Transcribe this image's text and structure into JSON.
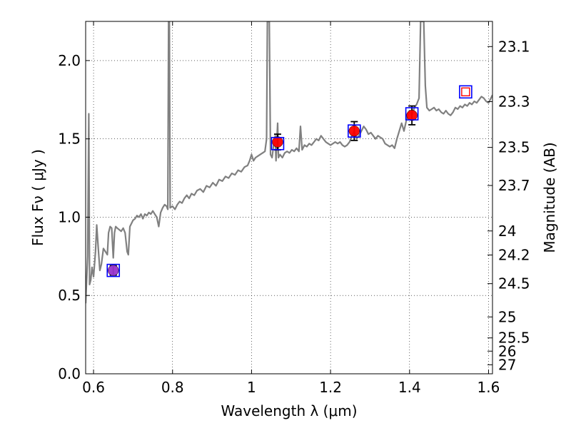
{
  "chart_data": {
    "type": "line",
    "xlabel": "Wavelength  λ (μm)",
    "ylabel": "Flux  Fν  ( μJy )",
    "ylabel_right": "Magnitude (AB)",
    "xlim": [
      0.58,
      1.61
    ],
    "ylim": [
      0.0,
      2.25
    ],
    "grid": true,
    "x_ticks": [
      {
        "value": 0.6,
        "label": "0.6"
      },
      {
        "value": 0.8,
        "label": "0.8"
      },
      {
        "value": 1.0,
        "label": "1"
      },
      {
        "value": 1.2,
        "label": "1.2"
      },
      {
        "value": 1.4,
        "label": "1.4"
      },
      {
        "value": 1.6,
        "label": "1.6"
      }
    ],
    "y_ticks": [
      {
        "value": 0.0,
        "label": "0.0"
      },
      {
        "value": 0.5,
        "label": "0.5"
      },
      {
        "value": 1.0,
        "label": "1.0"
      },
      {
        "value": 1.5,
        "label": "1.5"
      },
      {
        "value": 2.0,
        "label": "2.0"
      }
    ],
    "right_ticks": [
      {
        "mag": 23.1,
        "label": "23.1"
      },
      {
        "mag": 23.3,
        "label": "23.3"
      },
      {
        "mag": 23.5,
        "label": "23.5"
      },
      {
        "mag": 23.7,
        "label": "23.7"
      },
      {
        "mag": 24.0,
        "label": "24"
      },
      {
        "mag": 24.2,
        "label": "24.2"
      },
      {
        "mag": 24.5,
        "label": "24.5"
      },
      {
        "mag": 25.0,
        "label": "25"
      },
      {
        "mag": 25.5,
        "label": "25.5"
      },
      {
        "mag": 26.0,
        "label": "26"
      },
      {
        "mag": 27.0,
        "label": "27"
      }
    ],
    "model_spectrum": {
      "color": "#808080",
      "points": [
        [
          0.58,
          0.45
        ],
        [
          0.585,
          0.75
        ],
        [
          0.588,
          1.66
        ],
        [
          0.59,
          0.57
        ],
        [
          0.593,
          0.6
        ],
        [
          0.596,
          0.68
        ],
        [
          0.6,
          0.62
        ],
        [
          0.605,
          0.78
        ],
        [
          0.608,
          0.95
        ],
        [
          0.612,
          0.8
        ],
        [
          0.616,
          0.66
        ],
        [
          0.62,
          0.7
        ],
        [
          0.625,
          0.8
        ],
        [
          0.63,
          0.78
        ],
        [
          0.635,
          0.76
        ],
        [
          0.638,
          0.9
        ],
        [
          0.642,
          0.94
        ],
        [
          0.646,
          0.93
        ],
        [
          0.65,
          0.74
        ],
        [
          0.653,
          0.9
        ],
        [
          0.656,
          0.94
        ],
        [
          0.66,
          0.93
        ],
        [
          0.665,
          0.92
        ],
        [
          0.67,
          0.91
        ],
        [
          0.675,
          0.93
        ],
        [
          0.68,
          0.9
        ],
        [
          0.685,
          0.78
        ],
        [
          0.688,
          0.76
        ],
        [
          0.692,
          0.94
        ],
        [
          0.696,
          0.96
        ],
        [
          0.7,
          0.98
        ],
        [
          0.705,
          0.99
        ],
        [
          0.71,
          1.01
        ],
        [
          0.715,
          1.0
        ],
        [
          0.72,
          1.02
        ],
        [
          0.725,
          0.99
        ],
        [
          0.73,
          1.02
        ],
        [
          0.735,
          1.01
        ],
        [
          0.74,
          1.03
        ],
        [
          0.745,
          1.02
        ],
        [
          0.75,
          1.04
        ],
        [
          0.755,
          1.02
        ],
        [
          0.76,
          1.0
        ],
        [
          0.765,
          0.94
        ],
        [
          0.77,
          1.03
        ],
        [
          0.775,
          1.06
        ],
        [
          0.78,
          1.08
        ],
        [
          0.785,
          1.07
        ],
        [
          0.788,
          1.05
        ],
        [
          0.79,
          2.25
        ],
        [
          0.792,
          2.25
        ],
        [
          0.794,
          1.06
        ],
        [
          0.8,
          1.07
        ],
        [
          0.806,
          1.05
        ],
        [
          0.812,
          1.08
        ],
        [
          0.818,
          1.1
        ],
        [
          0.824,
          1.09
        ],
        [
          0.83,
          1.12
        ],
        [
          0.836,
          1.14
        ],
        [
          0.842,
          1.12
        ],
        [
          0.848,
          1.15
        ],
        [
          0.855,
          1.14
        ],
        [
          0.862,
          1.17
        ],
        [
          0.87,
          1.18
        ],
        [
          0.878,
          1.16
        ],
        [
          0.886,
          1.2
        ],
        [
          0.894,
          1.19
        ],
        [
          0.902,
          1.22
        ],
        [
          0.91,
          1.2
        ],
        [
          0.918,
          1.24
        ],
        [
          0.926,
          1.23
        ],
        [
          0.934,
          1.26
        ],
        [
          0.942,
          1.25
        ],
        [
          0.95,
          1.28
        ],
        [
          0.958,
          1.27
        ],
        [
          0.966,
          1.3
        ],
        [
          0.974,
          1.29
        ],
        [
          0.982,
          1.32
        ],
        [
          0.99,
          1.33
        ],
        [
          0.995,
          1.36
        ],
        [
          1.0,
          1.4
        ],
        [
          1.005,
          1.36
        ],
        [
          1.01,
          1.38
        ],
        [
          1.016,
          1.39
        ],
        [
          1.022,
          1.4
        ],
        [
          1.028,
          1.41
        ],
        [
          1.034,
          1.42
        ],
        [
          1.038,
          1.5
        ],
        [
          1.04,
          2.25
        ],
        [
          1.045,
          2.25
        ],
        [
          1.048,
          1.4
        ],
        [
          1.052,
          1.38
        ],
        [
          1.056,
          1.46
        ],
        [
          1.06,
          1.52
        ],
        [
          1.062,
          1.36
        ],
        [
          1.066,
          1.6
        ],
        [
          1.068,
          1.38
        ],
        [
          1.072,
          1.4
        ],
        [
          1.078,
          1.38
        ],
        [
          1.084,
          1.41
        ],
        [
          1.09,
          1.42
        ],
        [
          1.096,
          1.41
        ],
        [
          1.102,
          1.43
        ],
        [
          1.108,
          1.42
        ],
        [
          1.114,
          1.44
        ],
        [
          1.12,
          1.42
        ],
        [
          1.124,
          1.58
        ],
        [
          1.128,
          1.43
        ],
        [
          1.134,
          1.46
        ],
        [
          1.14,
          1.45
        ],
        [
          1.146,
          1.47
        ],
        [
          1.152,
          1.46
        ],
        [
          1.158,
          1.48
        ],
        [
          1.164,
          1.5
        ],
        [
          1.17,
          1.49
        ],
        [
          1.176,
          1.52
        ],
        [
          1.182,
          1.5
        ],
        [
          1.188,
          1.48
        ],
        [
          1.194,
          1.47
        ],
        [
          1.2,
          1.46
        ],
        [
          1.206,
          1.47
        ],
        [
          1.212,
          1.48
        ],
        [
          1.218,
          1.47
        ],
        [
          1.224,
          1.48
        ],
        [
          1.23,
          1.46
        ],
        [
          1.236,
          1.45
        ],
        [
          1.242,
          1.46
        ],
        [
          1.248,
          1.48
        ],
        [
          1.254,
          1.52
        ],
        [
          1.26,
          1.55
        ],
        [
          1.266,
          1.5
        ],
        [
          1.272,
          1.52
        ],
        [
          1.278,
          1.55
        ],
        [
          1.284,
          1.58
        ],
        [
          1.29,
          1.56
        ],
        [
          1.296,
          1.53
        ],
        [
          1.302,
          1.54
        ],
        [
          1.308,
          1.52
        ],
        [
          1.314,
          1.5
        ],
        [
          1.32,
          1.52
        ],
        [
          1.326,
          1.51
        ],
        [
          1.332,
          1.5
        ],
        [
          1.338,
          1.47
        ],
        [
          1.344,
          1.46
        ],
        [
          1.35,
          1.45
        ],
        [
          1.356,
          1.46
        ],
        [
          1.362,
          1.44
        ],
        [
          1.368,
          1.5
        ],
        [
          1.374,
          1.55
        ],
        [
          1.38,
          1.6
        ],
        [
          1.386,
          1.55
        ],
        [
          1.392,
          1.62
        ],
        [
          1.396,
          1.65
        ],
        [
          1.4,
          1.68
        ],
        [
          1.404,
          1.65
        ],
        [
          1.408,
          1.66
        ],
        [
          1.412,
          1.7
        ],
        [
          1.418,
          1.72
        ],
        [
          1.424,
          1.76
        ],
        [
          1.428,
          2.25
        ],
        [
          1.436,
          2.25
        ],
        [
          1.44,
          1.84
        ],
        [
          1.444,
          1.7
        ],
        [
          1.45,
          1.68
        ],
        [
          1.456,
          1.69
        ],
        [
          1.462,
          1.7
        ],
        [
          1.468,
          1.68
        ],
        [
          1.474,
          1.69
        ],
        [
          1.48,
          1.67
        ],
        [
          1.486,
          1.66
        ],
        [
          1.492,
          1.68
        ],
        [
          1.498,
          1.66
        ],
        [
          1.504,
          1.65
        ],
        [
          1.51,
          1.67
        ],
        [
          1.516,
          1.7
        ],
        [
          1.522,
          1.69
        ],
        [
          1.528,
          1.71
        ],
        [
          1.534,
          1.7
        ],
        [
          1.54,
          1.72
        ],
        [
          1.546,
          1.71
        ],
        [
          1.552,
          1.73
        ],
        [
          1.558,
          1.72
        ],
        [
          1.564,
          1.74
        ],
        [
          1.57,
          1.73
        ],
        [
          1.576,
          1.75
        ],
        [
          1.582,
          1.77
        ],
        [
          1.588,
          1.76
        ],
        [
          1.594,
          1.74
        ],
        [
          1.6,
          1.73
        ],
        [
          1.606,
          1.76
        ],
        [
          1.61,
          1.78
        ]
      ]
    },
    "model_photometry": {
      "marker": "square",
      "edge_colors": [
        "#0000ff",
        "#0000ff",
        "#0000ff",
        "#0000ff",
        "#0000ff"
      ],
      "extra_marker_color": "#ff0000",
      "points": [
        [
          0.65,
          0.66
        ],
        [
          1.066,
          1.47
        ],
        [
          1.26,
          1.55
        ],
        [
          1.406,
          1.66
        ],
        [
          1.542,
          1.8
        ]
      ]
    },
    "observed_photometry": {
      "marker": "circle",
      "points": [
        {
          "x": 0.65,
          "y": 0.66,
          "yerr": 0.03,
          "color": "#9933cc"
        },
        {
          "x": 1.066,
          "y": 1.48,
          "yerr": 0.05,
          "color": "#ff0000"
        },
        {
          "x": 1.26,
          "y": 1.55,
          "yerr": 0.06,
          "color": "#ff0000"
        },
        {
          "x": 1.406,
          "y": 1.65,
          "yerr": 0.06,
          "color": "#ff0000"
        }
      ]
    }
  }
}
